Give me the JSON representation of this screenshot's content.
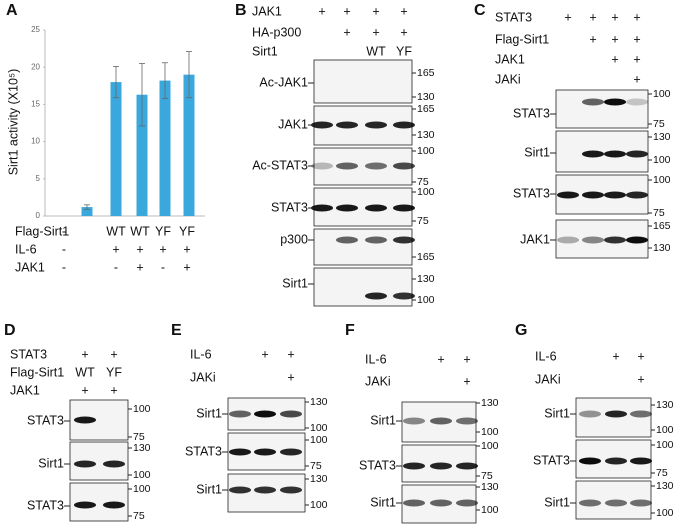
{
  "chart_data": {
    "type": "bar",
    "panel": "A",
    "ylabel": "Sirt1 activity (X10⁵)",
    "values": [
      1.2,
      18,
      16.3,
      18.2,
      19
    ],
    "errors": [
      0.3,
      2.1,
      4.2,
      2.4,
      3.1
    ],
    "color": "#3aa8dd",
    "ylim": [
      0,
      25
    ],
    "yticks": [
      0,
      5,
      10,
      15,
      20,
      25
    ],
    "condition_rows": [
      {
        "label": "Flag-Sirt1",
        "marks": [
          "-",
          "WT",
          "WT",
          "YF",
          "YF"
        ]
      },
      {
        "label": "IL-6",
        "marks": [
          "-",
          "+",
          "+",
          "+",
          "+"
        ]
      },
      {
        "label": "JAK1",
        "marks": [
          "-",
          "-",
          "+",
          "-",
          "+"
        ]
      }
    ]
  },
  "panels": [
    {
      "panel": "B",
      "headers": [
        {
          "label": "JAK1",
          "marks": [
            "+",
            "+",
            "+",
            "+"
          ]
        },
        {
          "label": "HA-p300",
          "marks": [
            null,
            "+",
            "+",
            "+"
          ]
        },
        {
          "label": "Sirt1",
          "marks": [
            null,
            null,
            "WT",
            "YF"
          ]
        }
      ],
      "blots": [
        {
          "label": "Ac-JAK1",
          "markers": [
            "165",
            "130"
          ]
        },
        {
          "label": "JAK1",
          "markers": [
            "165",
            "130"
          ]
        },
        {
          "label": "Ac-STAT3",
          "markers": [
            "100",
            "75"
          ]
        },
        {
          "label": "STAT3",
          "markers": [
            "100",
            "75"
          ]
        },
        {
          "label": "p300",
          "markers": [
            "165"
          ]
        },
        {
          "label": "Sirt1",
          "markers": [
            "130",
            "100"
          ]
        }
      ]
    },
    {
      "panel": "C",
      "headers": [
        {
          "label": "STAT3",
          "marks": [
            "+",
            "+",
            "+",
            "+"
          ]
        },
        {
          "label": "Flag-Sirt1",
          "marks": [
            null,
            "+",
            "+",
            "+"
          ]
        },
        {
          "label": "JAK1",
          "marks": [
            null,
            null,
            "+",
            "+"
          ]
        },
        {
          "label": "JAKi",
          "marks": [
            null,
            null,
            null,
            "+"
          ]
        }
      ],
      "blots": [
        {
          "label": "STAT3",
          "markers": [
            "100",
            "75"
          ]
        },
        {
          "label": "Sirt1",
          "markers": [
            "130",
            "100"
          ]
        },
        {
          "label": "STAT3",
          "markers": [
            "100",
            "75"
          ]
        },
        {
          "label": "JAK1",
          "markers": [
            "165",
            "130"
          ]
        }
      ]
    },
    {
      "panel": "D",
      "headers": [
        {
          "label": "STAT3",
          "marks": [
            "+",
            "+"
          ]
        },
        {
          "label": "Flag-Sirt1",
          "marks": [
            "WT",
            "YF"
          ]
        },
        {
          "label": "JAK1",
          "marks": [
            "+",
            "+"
          ]
        }
      ],
      "blots": [
        {
          "label": "STAT3",
          "markers": [
            "100",
            "75"
          ]
        },
        {
          "label": "Sirt1",
          "markers": [
            "130",
            "100"
          ]
        },
        {
          "label": "STAT3",
          "markers": [
            "100",
            "75"
          ]
        }
      ]
    },
    {
      "panel": "E",
      "headers": [
        {
          "label": "IL-6",
          "marks": [
            null,
            "+",
            "+"
          ]
        },
        {
          "label": "JAKi",
          "marks": [
            null,
            null,
            "+"
          ]
        }
      ],
      "blots": [
        {
          "label": "Sirt1",
          "markers": [
            "130",
            "100"
          ]
        },
        {
          "label": "STAT3",
          "markers": [
            "100",
            "75"
          ]
        },
        {
          "label": "Sirt1",
          "markers": [
            "130",
            "100"
          ]
        }
      ]
    },
    {
      "panel": "F",
      "headers": [
        {
          "label": "IL-6",
          "marks": [
            null,
            "+",
            "+"
          ]
        },
        {
          "label": "JAKi",
          "marks": [
            null,
            null,
            "+"
          ]
        }
      ],
      "blots": [
        {
          "label": "Sirt1",
          "markers": [
            "130",
            "100"
          ]
        },
        {
          "label": "STAT3",
          "markers": [
            "100",
            "75"
          ]
        },
        {
          "label": "Sirt1",
          "markers": [
            "130",
            "100"
          ]
        }
      ]
    },
    {
      "panel": "G",
      "headers": [
        {
          "label": "IL-6",
          "marks": [
            null,
            "+",
            "+"
          ]
        },
        {
          "label": "JAKi",
          "marks": [
            null,
            null,
            "+"
          ]
        }
      ],
      "blots": [
        {
          "label": "Sirt1",
          "markers": [
            "130",
            "100"
          ]
        },
        {
          "label": "STAT3",
          "markers": [
            "100",
            "75"
          ]
        },
        {
          "label": "Sirt1",
          "markers": [
            "130",
            "100"
          ]
        }
      ]
    }
  ]
}
